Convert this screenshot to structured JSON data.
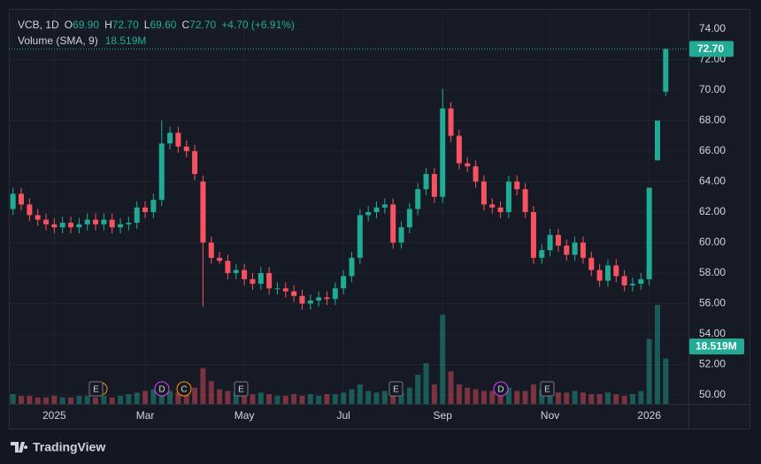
{
  "chart_data": {
    "type": "candlestick",
    "legend": {
      "symbol": "VCB, 1D",
      "o": "O",
      "open": "69.90",
      "h": "H",
      "high": "72.70",
      "l": "L",
      "low": "69.60",
      "c": "C",
      "close": "72.70",
      "change": "+4.70 (+6.91%)",
      "volume_name": "Volume (SMA, 9)",
      "volume_sma": "18.519M"
    },
    "categories": [
      null,
      null,
      null,
      null,
      null,
      "2025",
      null,
      null,
      null,
      null,
      null,
      null,
      null,
      null,
      null,
      null,
      "Mar",
      null,
      null,
      null,
      null,
      null,
      null,
      null,
      null,
      null,
      null,
      null,
      "May",
      null,
      null,
      null,
      null,
      null,
      null,
      null,
      null,
      null,
      null,
      null,
      "Jul",
      null,
      null,
      null,
      null,
      null,
      null,
      null,
      null,
      null,
      null,
      null,
      "Sep",
      null,
      null,
      null,
      null,
      null,
      null,
      null,
      null,
      null,
      null,
      null,
      null,
      "Nov",
      null,
      null,
      null,
      null,
      null,
      null,
      null,
      null,
      null,
      null,
      null,
      "2026",
      null,
      null
    ],
    "open": [
      62.2,
      63.2,
      62.5,
      61.8,
      61.5,
      61.2,
      61.0,
      61.3,
      61.0,
      61.2,
      61.5,
      61.2,
      61.5,
      61.0,
      61.2,
      61.3,
      62.3,
      62.0,
      62.8,
      66.5,
      67.2,
      66.3,
      66.0,
      64.0,
      60.0,
      59.0,
      58.8,
      58.0,
      58.2,
      57.6,
      57.3,
      58.0,
      57.0,
      57.0,
      56.8,
      56.5,
      56.0,
      56.2,
      56.4,
      56.3,
      57.0,
      57.8,
      59.0,
      61.8,
      62.0,
      62.3,
      62.5,
      60.0,
      61.0,
      62.2,
      63.5,
      64.5,
      63.0,
      68.8,
      67.0,
      65.2,
      65.0,
      64.0,
      62.5,
      62.3,
      62.0,
      64.0,
      63.5,
      62.0,
      59.0,
      59.5,
      60.5,
      59.8,
      59.2,
      60.0,
      59.0,
      58.2,
      57.5,
      58.5,
      57.8,
      57.2,
      57.3,
      57.6,
      65.4,
      69.9
    ],
    "high": [
      63.6,
      63.6,
      62.9,
      62.2,
      61.9,
      61.6,
      61.7,
      61.7,
      61.6,
      61.9,
      61.9,
      61.9,
      61.9,
      61.6,
      61.7,
      62.7,
      62.7,
      63.2,
      68.0,
      67.6,
      67.6,
      66.7,
      66.4,
      64.4,
      60.4,
      59.4,
      59.2,
      58.6,
      58.6,
      58.0,
      58.4,
      58.4,
      57.4,
      57.4,
      57.2,
      56.9,
      56.6,
      56.8,
      56.8,
      57.4,
      58.2,
      59.4,
      62.2,
      62.4,
      62.7,
      62.9,
      62.9,
      61.4,
      62.6,
      63.9,
      64.9,
      64.9,
      70.1,
      69.2,
      67.4,
      65.6,
      65.4,
      64.4,
      62.9,
      62.7,
      64.4,
      64.4,
      63.9,
      62.4,
      59.9,
      60.9,
      60.9,
      60.2,
      60.4,
      60.4,
      59.4,
      58.6,
      58.9,
      58.9,
      58.2,
      57.7,
      58.0,
      63.6,
      68.0,
      72.7
    ],
    "low": [
      61.8,
      62.1,
      61.4,
      61.1,
      60.8,
      60.6,
      60.6,
      60.6,
      60.6,
      60.8,
      60.8,
      60.8,
      60.6,
      60.6,
      60.8,
      60.9,
      61.6,
      61.6,
      62.4,
      66.1,
      65.9,
      65.6,
      64.1,
      55.8,
      58.6,
      58.6,
      57.6,
      57.6,
      57.2,
      56.9,
      56.9,
      56.6,
      56.6,
      56.4,
      56.1,
      55.6,
      55.6,
      55.8,
      55.9,
      55.9,
      56.6,
      57.4,
      58.6,
      61.4,
      61.6,
      61.9,
      59.6,
      59.6,
      60.6,
      61.8,
      63.1,
      62.6,
      62.6,
      66.6,
      64.8,
      64.6,
      63.6,
      62.1,
      61.9,
      61.6,
      61.6,
      63.1,
      61.6,
      58.6,
      58.6,
      59.1,
      59.4,
      58.8,
      58.8,
      58.6,
      57.8,
      57.1,
      57.1,
      57.4,
      56.8,
      56.8,
      56.9,
      57.2,
      65.4,
      69.6
    ],
    "close": [
      63.2,
      62.5,
      61.8,
      61.5,
      61.2,
      61.0,
      61.3,
      61.0,
      61.2,
      61.5,
      61.2,
      61.5,
      61.0,
      61.2,
      61.3,
      62.3,
      62.0,
      62.8,
      66.5,
      67.2,
      66.3,
      66.0,
      64.5,
      60.0,
      59.0,
      58.8,
      58.0,
      58.2,
      57.6,
      57.3,
      58.0,
      57.0,
      57.0,
      56.8,
      56.5,
      56.0,
      56.2,
      56.4,
      56.3,
      57.0,
      57.8,
      59.0,
      61.8,
      62.0,
      62.3,
      62.5,
      60.0,
      61.0,
      62.2,
      63.5,
      64.5,
      63.0,
      68.8,
      67.0,
      65.2,
      65.0,
      64.0,
      62.5,
      62.3,
      62.0,
      64.0,
      63.5,
      62.0,
      59.0,
      59.5,
      60.5,
      59.8,
      59.2,
      60.0,
      59.0,
      58.2,
      57.5,
      58.5,
      57.8,
      57.2,
      57.3,
      57.6,
      63.6,
      68.0,
      72.7
    ],
    "volume": [
      6,
      5,
      5,
      4,
      4,
      5,
      4,
      4,
      5,
      5,
      4,
      5,
      4,
      5,
      6,
      7,
      8,
      9,
      12,
      8,
      7,
      8,
      10,
      22,
      14,
      9,
      8,
      7,
      6,
      6,
      7,
      6,
      5,
      5,
      6,
      5,
      6,
      5,
      6,
      6,
      7,
      9,
      12,
      8,
      7,
      8,
      9,
      7,
      10,
      18,
      25,
      12,
      55,
      20,
      12,
      10,
      9,
      8,
      8,
      7,
      10,
      8,
      8,
      12,
      9,
      8,
      7,
      7,
      8,
      7,
      6,
      6,
      7,
      6,
      5,
      6,
      8,
      40,
      61,
      28
    ],
    "up_color": "#22ab94",
    "down_color": "#f7525f",
    "ylim": [
      49.42,
      75.33
    ],
    "yticks": [
      {
        "value": 50,
        "label": "50.00"
      },
      {
        "value": 52,
        "label": "52.00"
      },
      {
        "value": 54,
        "label": "54.00"
      },
      {
        "value": 56,
        "label": "56.00"
      },
      {
        "value": 58,
        "label": "58.00"
      },
      {
        "value": 60,
        "label": "60.00"
      },
      {
        "value": 62,
        "label": "62.00"
      },
      {
        "value": 64,
        "label": "64.00"
      },
      {
        "value": 66,
        "label": "66.00"
      },
      {
        "value": 68,
        "label": "68.00"
      },
      {
        "value": 70,
        "label": "70.00"
      },
      {
        "value": 72,
        "label": "72.00"
      },
      {
        "value": 74,
        "label": "74.00"
      }
    ],
    "grid": true,
    "events": [
      "E",
      "D",
      "C",
      "E",
      "E",
      "D",
      "E"
    ]
  },
  "footer": {
    "brand": "TradingView"
  }
}
